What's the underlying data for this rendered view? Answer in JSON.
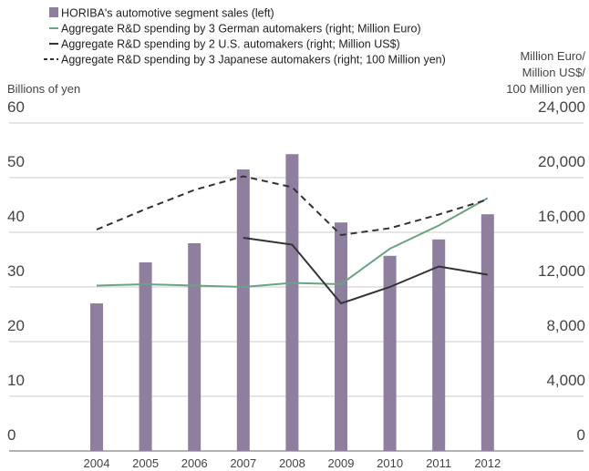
{
  "chart_data": {
    "type": "bar-line",
    "ylabel": "Billions of yen",
    "y2label": [
      "Million Euro/",
      "Million US$/",
      "100 Million yen"
    ],
    "categories": [
      "2004",
      "2005",
      "2006",
      "2007",
      "2008",
      "2009",
      "2010",
      "2011",
      "2012"
    ],
    "ylim": [
      0,
      60
    ],
    "yticks": [
      0,
      10,
      20,
      30,
      40,
      50,
      60
    ],
    "y2lim": [
      0,
      24000
    ],
    "y2ticks": [
      0,
      {
        "value": 4000,
        "label": "4,000"
      },
      {
        "value": 8000,
        "label": "8,000"
      },
      {
        "value": 12000,
        "label": "12,000"
      },
      {
        "value": 16000,
        "label": "16,000"
      },
      {
        "value": 20000,
        "label": "20,000"
      },
      {
        "value": 24000,
        "label": "24,000"
      }
    ],
    "grid": true,
    "series": [
      {
        "name": "HORIBA's automotive segment sales (left)",
        "type": "bar",
        "color": "#8e7f9e",
        "values": [
          27,
          34.5,
          38,
          51.5,
          54.3,
          41.8,
          35.7,
          38.7,
          43.3
        ]
      },
      {
        "name": "Aggregate R&D spending by 3 German automakers (right; Million Euro)",
        "type": "line",
        "axis": "y2",
        "style": "solid",
        "color": "#6aa383",
        "values": [
          12100,
          12200,
          12100,
          12000,
          12300,
          12200,
          14800,
          16500,
          18500
        ]
      },
      {
        "name": "Aggregate R&D spending by 2 U.S. automakers (right; Million US$)",
        "type": "line",
        "axis": "y2",
        "style": "solid",
        "color": "#333333",
        "values": [
          null,
          null,
          null,
          15600,
          15100,
          10800,
          12000,
          13500,
          12900
        ]
      },
      {
        "name": "Aggregate R&D spending by 3 Japanese automakers (right; 100 Million yen)",
        "type": "line",
        "axis": "y2",
        "style": "dashed",
        "color": "#333333",
        "values": [
          16200,
          17700,
          19100,
          20100,
          19300,
          15800,
          16300,
          17300,
          18400
        ]
      }
    ]
  }
}
